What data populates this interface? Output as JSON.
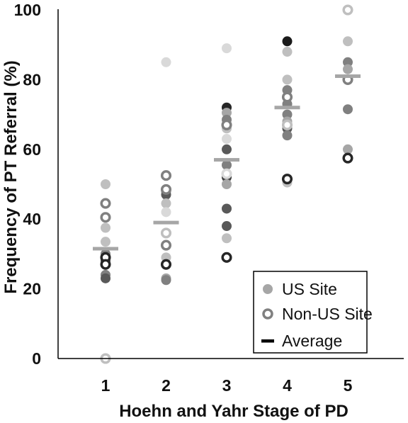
{
  "chart_data": {
    "type": "scatter",
    "xlabel": "Hoehn and Yahr Stage of PD",
    "ylabel": "Frequency of PT Referral (%)",
    "x_categories": [
      "1",
      "2",
      "3",
      "4",
      "5"
    ],
    "ylim": [
      0,
      100
    ],
    "yticks": [
      "0",
      "20",
      "40",
      "60",
      "80",
      "100"
    ],
    "grid": false,
    "legend_position": "bottom-right",
    "legend": [
      {
        "label": "US Site",
        "marker": "filled-circle"
      },
      {
        "label": "Non-US Site",
        "marker": "open-circle"
      },
      {
        "label": "Average",
        "marker": "dash"
      }
    ],
    "series": [
      {
        "name": "US Site",
        "points": [
          {
            "x": 1,
            "y": 50,
            "shade": "#bfbfbf"
          },
          {
            "x": 1,
            "y": 37.5,
            "shade": "#bfbfbf"
          },
          {
            "x": 1,
            "y": 33.5,
            "shade": "#bfbfbf"
          },
          {
            "x": 1,
            "y": 30,
            "shade": "#808080"
          },
          {
            "x": 1,
            "y": 28,
            "shade": "#595959"
          },
          {
            "x": 1,
            "y": 24,
            "shade": "#808080"
          },
          {
            "x": 1,
            "y": 23,
            "shade": "#595959"
          },
          {
            "x": 2,
            "y": 85,
            "shade": "#d9d9d9"
          },
          {
            "x": 2,
            "y": 48,
            "shade": "#808080"
          },
          {
            "x": 2,
            "y": 47,
            "shade": "#595959"
          },
          {
            "x": 2,
            "y": 44.5,
            "shade": "#bfbfbf"
          },
          {
            "x": 2,
            "y": 42,
            "shade": "#d9d9d9"
          },
          {
            "x": 2,
            "y": 29,
            "shade": "#bfbfbf"
          },
          {
            "x": 2,
            "y": 23,
            "shade": "#a6a6a6"
          },
          {
            "x": 2,
            "y": 22.5,
            "shade": "#808080"
          },
          {
            "x": 3,
            "y": 89,
            "shade": "#d9d9d9"
          },
          {
            "x": 3,
            "y": 72,
            "shade": "#262626"
          },
          {
            "x": 3,
            "y": 70.5,
            "shade": "#a6a6a6"
          },
          {
            "x": 3,
            "y": 68.5,
            "shade": "#808080"
          },
          {
            "x": 3,
            "y": 66,
            "shade": "#bfbfbf"
          },
          {
            "x": 3,
            "y": 63,
            "shade": "#d9d9d9"
          },
          {
            "x": 3,
            "y": 60,
            "shade": "#595959"
          },
          {
            "x": 3,
            "y": 55.5,
            "shade": "#808080"
          },
          {
            "x": 3,
            "y": 52,
            "shade": "#404040"
          },
          {
            "x": 3,
            "y": 50,
            "shade": "#a6a6a6"
          },
          {
            "x": 3,
            "y": 43,
            "shade": "#595959"
          },
          {
            "x": 3,
            "y": 38,
            "shade": "#595959"
          },
          {
            "x": 3,
            "y": 34.5,
            "shade": "#bfbfbf"
          },
          {
            "x": 4,
            "y": 91,
            "shade": "#1a1a1a"
          },
          {
            "x": 4,
            "y": 88,
            "shade": "#bfbfbf"
          },
          {
            "x": 4,
            "y": 80,
            "shade": "#bfbfbf"
          },
          {
            "x": 4,
            "y": 77,
            "shade": "#808080"
          },
          {
            "x": 4,
            "y": 73,
            "shade": "#808080"
          },
          {
            "x": 4,
            "y": 70,
            "shade": "#808080"
          },
          {
            "x": 4,
            "y": 68,
            "shade": "#a6a6a6"
          },
          {
            "x": 4,
            "y": 66,
            "shade": "#595959"
          },
          {
            "x": 4,
            "y": 64,
            "shade": "#808080"
          },
          {
            "x": 4,
            "y": 50.5,
            "shade": "#bfbfbf"
          },
          {
            "x": 5,
            "y": 91,
            "shade": "#bfbfbf"
          },
          {
            "x": 5,
            "y": 85,
            "shade": "#808080"
          },
          {
            "x": 5,
            "y": 83,
            "shade": "#a6a6a6"
          },
          {
            "x": 5,
            "y": 71.5,
            "shade": "#808080"
          },
          {
            "x": 5,
            "y": 60,
            "shade": "#a6a6a6"
          }
        ]
      },
      {
        "name": "Non-US Site",
        "points": [
          {
            "x": 1,
            "y": 44.5,
            "shade": "#808080"
          },
          {
            "x": 1,
            "y": 40.5,
            "shade": "#808080"
          },
          {
            "x": 1,
            "y": 29,
            "shade": "#262626"
          },
          {
            "x": 1,
            "y": 27,
            "shade": "#262626"
          },
          {
            "x": 1,
            "y": 0,
            "shade": "#bfbfbf"
          },
          {
            "x": 2,
            "y": 52.5,
            "shade": "#808080"
          },
          {
            "x": 2,
            "y": 48.5,
            "shade": "#808080"
          },
          {
            "x": 2,
            "y": 36,
            "shade": "#bfbfbf"
          },
          {
            "x": 2,
            "y": 32.5,
            "shade": "#808080"
          },
          {
            "x": 2,
            "y": 27,
            "shade": "#262626"
          },
          {
            "x": 3,
            "y": 67,
            "shade": "#808080"
          },
          {
            "x": 3,
            "y": 53,
            "shade": "#d9d9d9"
          },
          {
            "x": 3,
            "y": 29,
            "shade": "#262626"
          },
          {
            "x": 4,
            "y": 75,
            "shade": "#808080"
          },
          {
            "x": 4,
            "y": 67,
            "shade": "#bfbfbf"
          },
          {
            "x": 4,
            "y": 51.5,
            "shade": "#262626"
          },
          {
            "x": 5,
            "y": 100,
            "shade": "#bfbfbf"
          },
          {
            "x": 5,
            "y": 80,
            "shade": "#808080"
          },
          {
            "x": 5,
            "y": 57.5,
            "shade": "#262626"
          }
        ]
      },
      {
        "name": "Average",
        "points": [
          {
            "x": 1,
            "y": 31.5
          },
          {
            "x": 2,
            "y": 39
          },
          {
            "x": 3,
            "y": 57
          },
          {
            "x": 4,
            "y": 72
          },
          {
            "x": 5,
            "y": 81
          }
        ]
      }
    ],
    "colors": {
      "axis": "#000000",
      "average_dash": "#a6a6a6",
      "legend_us": "#a6a6a6",
      "legend_nonus": "#808080",
      "legend_average": "#000000"
    }
  }
}
